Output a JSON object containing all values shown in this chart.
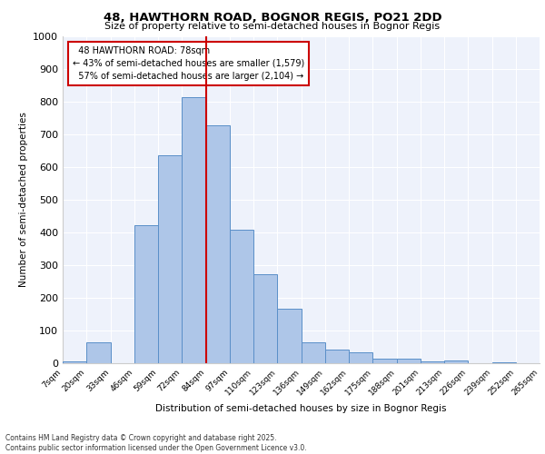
{
  "title1": "48, HAWTHORN ROAD, BOGNOR REGIS, PO21 2DD",
  "title2": "Size of property relative to semi-detached houses in Bognor Regis",
  "xlabel": "Distribution of semi-detached houses by size in Bognor Regis",
  "ylabel": "Number of semi-detached properties",
  "categories": [
    "7sqm",
    "20sqm",
    "33sqm",
    "46sqm",
    "59sqm",
    "72sqm",
    "84sqm",
    "97sqm",
    "110sqm",
    "123sqm",
    "136sqm",
    "149sqm",
    "162sqm",
    "175sqm",
    "188sqm",
    "201sqm",
    "213sqm",
    "226sqm",
    "239sqm",
    "252sqm",
    "265sqm"
  ],
  "values": [
    5,
    63,
    0,
    422,
    635,
    815,
    728,
    408,
    272,
    168,
    63,
    42,
    33,
    15,
    15,
    5,
    8,
    0,
    3,
    0
  ],
  "bar_color": "#aec6e8",
  "bar_edge_color": "#5a8fc8",
  "property_line_label": "48 HAWTHORN ROAD: 78sqm",
  "pct_smaller": 43,
  "pct_larger": 57,
  "count_smaller": 1579,
  "count_larger": 2104,
  "vline_color": "#cc0000",
  "annotation_box_edge": "#cc0000",
  "ylim": [
    0,
    1000
  ],
  "yticks": [
    0,
    100,
    200,
    300,
    400,
    500,
    600,
    700,
    800,
    900,
    1000
  ],
  "bg_color": "#eef2fb",
  "footer_line1": "Contains HM Land Registry data © Crown copyright and database right 2025.",
  "footer_line2": "Contains public sector information licensed under the Open Government Licence v3.0."
}
